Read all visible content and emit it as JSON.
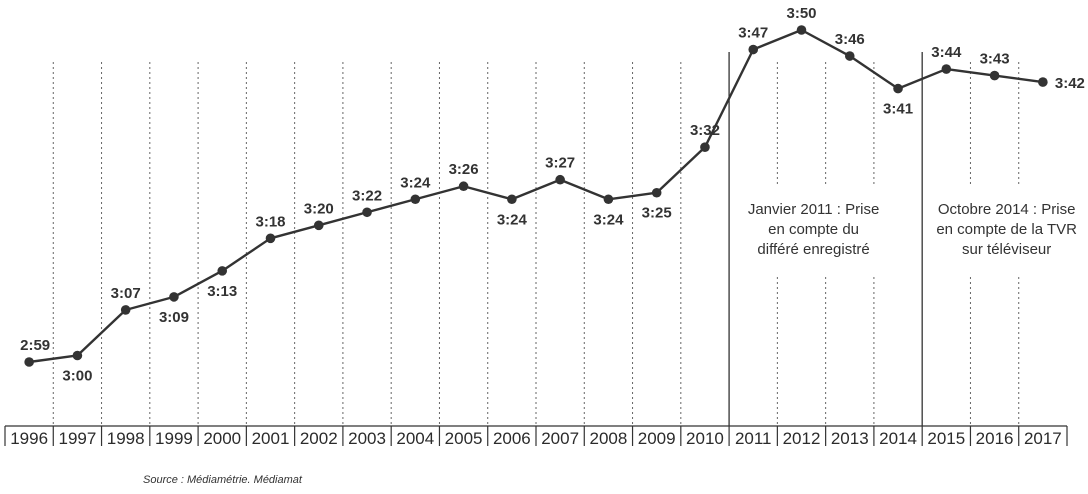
{
  "chart_data": {
    "type": "line",
    "title": "",
    "xlabel": "",
    "ylabel": "",
    "categories": [
      "1996",
      "1997",
      "1998",
      "1999",
      "2000",
      "2001",
      "2002",
      "2003",
      "2004",
      "2005",
      "2006",
      "2007",
      "2008",
      "2009",
      "2010",
      "2011",
      "2012",
      "2013",
      "2014",
      "2015",
      "2016",
      "2017"
    ],
    "values_minutes": [
      179,
      180,
      187,
      189,
      193,
      198,
      200,
      202,
      204,
      206,
      204,
      207,
      204,
      205,
      212,
      227,
      230,
      226,
      221,
      224,
      223,
      222
    ],
    "data_labels": [
      "2:59",
      "3:00",
      "3:07",
      "3:09",
      "3:13",
      "3:18",
      "3:20",
      "3:22",
      "3:24",
      "3:26",
      "3:24",
      "3:27",
      "3:24",
      "3:25",
      "3:32",
      "3:47",
      "3:50",
      "3:46",
      "3:41",
      "3:44",
      "3:43",
      "3:42"
    ],
    "label_positions": [
      "above",
      "below",
      "above",
      "below",
      "below",
      "above",
      "above",
      "above",
      "above",
      "above",
      "below",
      "above",
      "below",
      "below",
      "above",
      "above",
      "above",
      "above",
      "below",
      "above",
      "above",
      "right"
    ],
    "grid": true,
    "colors": {
      "line": "#333333",
      "grid": "#666666",
      "axis": "#333333"
    },
    "annotations": [
      {
        "after_category": "2010",
        "lines": [
          "Janvier 2011 : Prise",
          "en compte du",
          "différé enregistré"
        ]
      },
      {
        "after_category": "2014",
        "lines": [
          "Octobre 2014 : Prise",
          "en compte de la TVR",
          "sur téléviseur"
        ]
      }
    ]
  },
  "source": "Source : Médiamétrie. Médiamat"
}
